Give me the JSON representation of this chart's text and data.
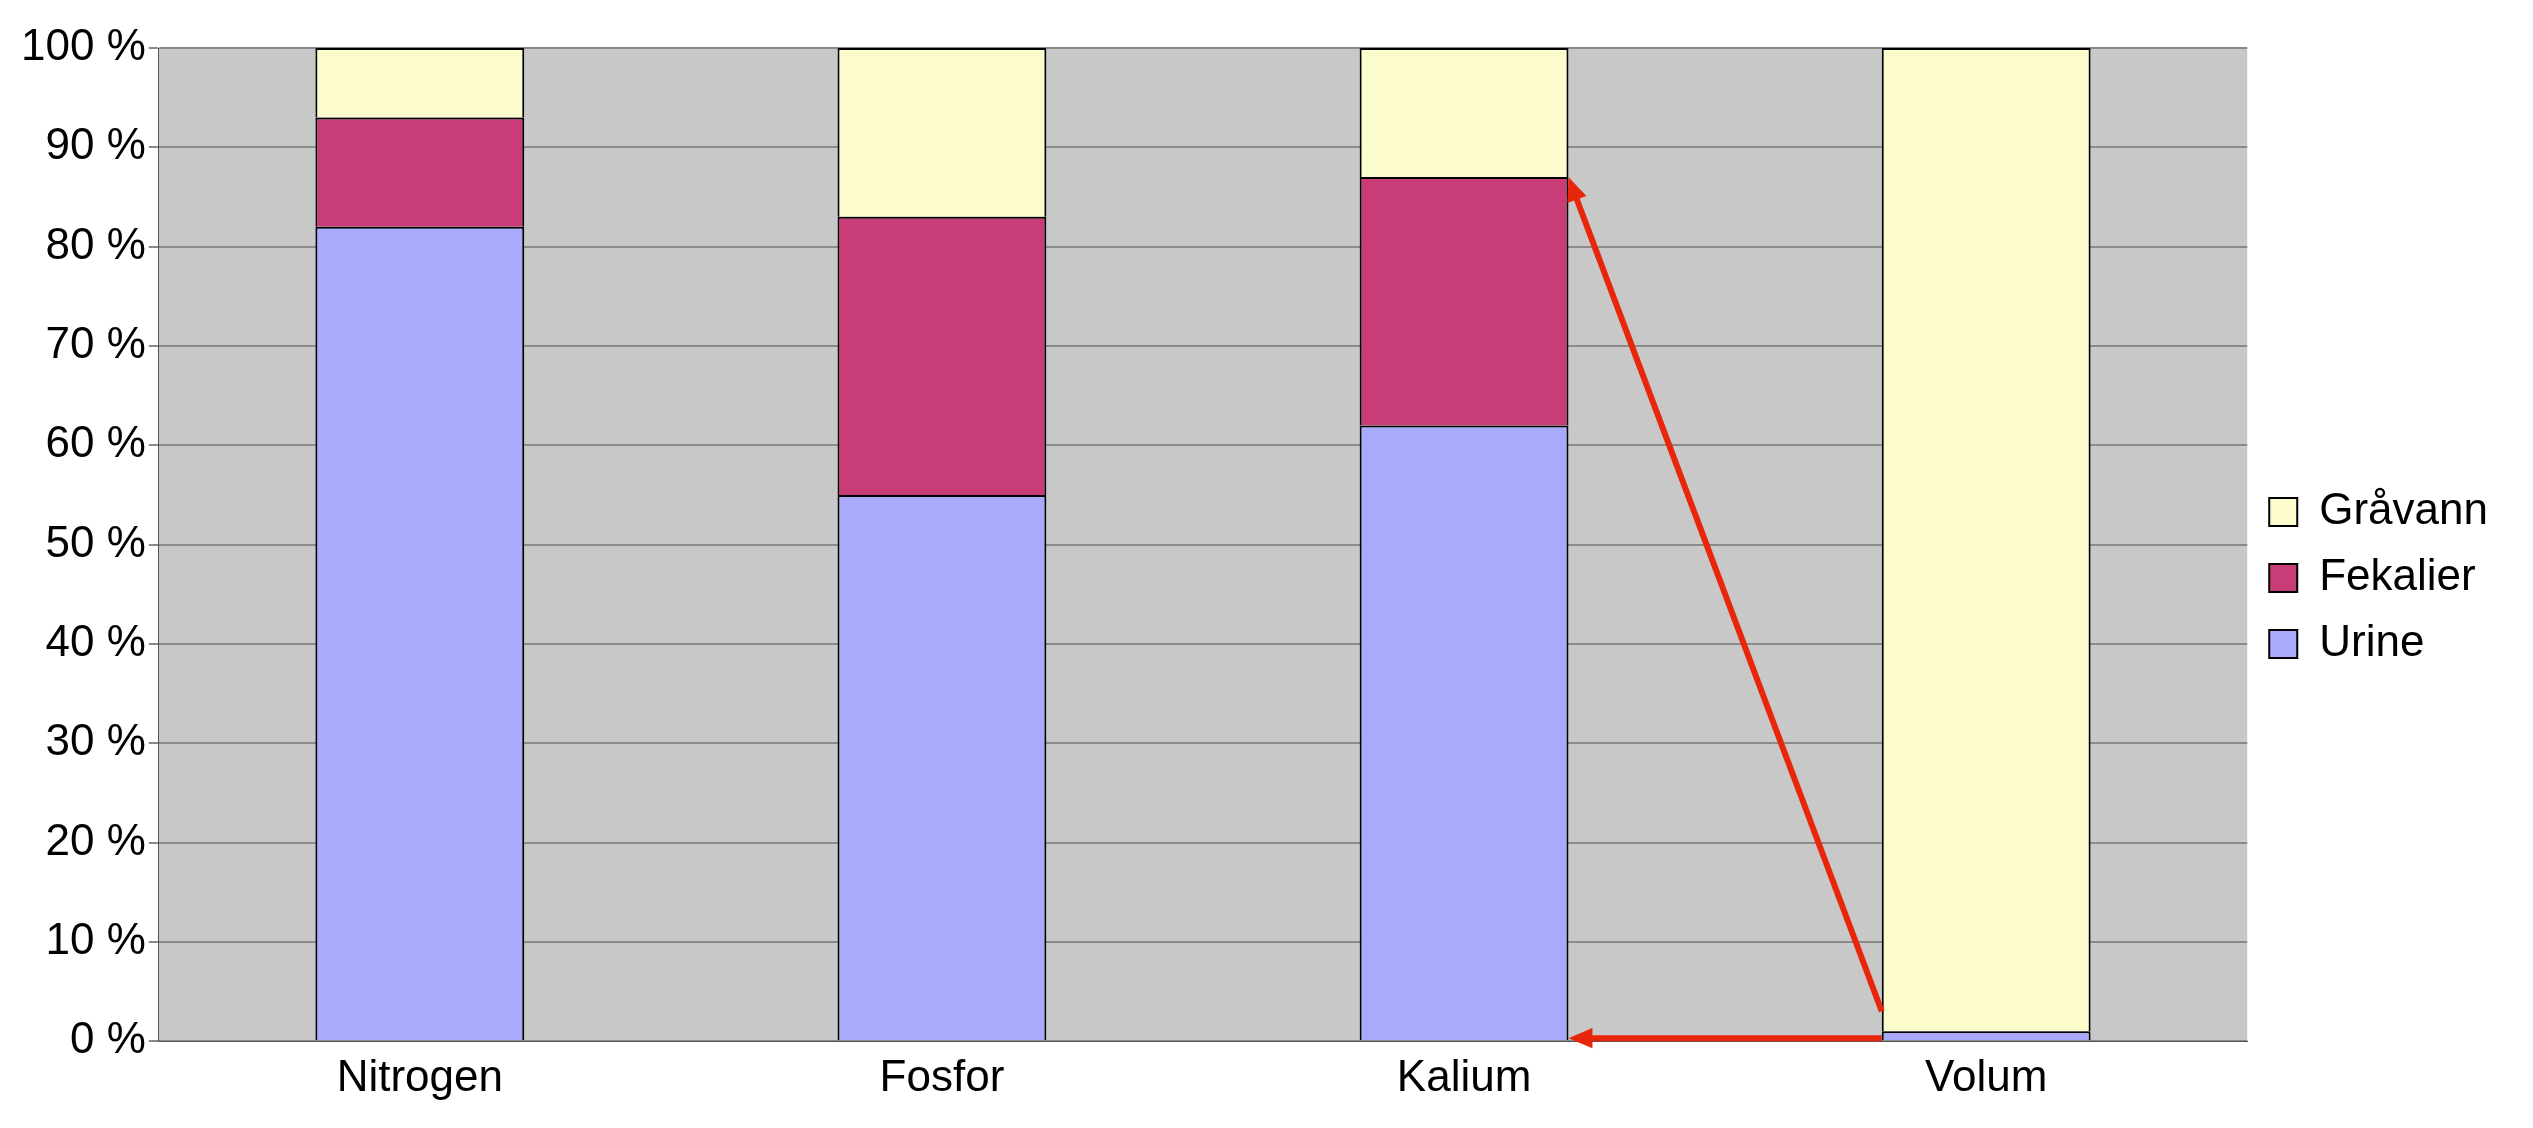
{
  "chart_data": {
    "type": "bar",
    "stacked": true,
    "categories": [
      "Nitrogen",
      "Fosfor",
      "Kalium",
      "Volum"
    ],
    "series": [
      {
        "name": "Urine",
        "color": "#aaaafc",
        "values": [
          82,
          55,
          62,
          1
        ]
      },
      {
        "name": "Fekalier",
        "color": "#c83c78",
        "values": [
          11,
          28,
          25,
          0
        ]
      },
      {
        "name": "Gråvann",
        "color": "#fcfccc",
        "values": [
          7,
          17,
          13,
          99
        ]
      }
    ],
    "ylim": [
      0,
      100
    ],
    "yticks": [
      {
        "value": 0,
        "label": "0 %"
      },
      {
        "value": 10,
        "label": "10 %"
      },
      {
        "value": 20,
        "label": "20 %"
      },
      {
        "value": 30,
        "label": "30 %"
      },
      {
        "value": 40,
        "label": "40 %"
      },
      {
        "value": 50,
        "label": "50 %"
      },
      {
        "value": 60,
        "label": "60 %"
      },
      {
        "value": 70,
        "label": "70 %"
      },
      {
        "value": 80,
        "label": "80 %"
      },
      {
        "value": 90,
        "label": "90 %"
      },
      {
        "value": 100,
        "label": "100 %"
      }
    ],
    "grid": "y",
    "legend": "right"
  }
}
